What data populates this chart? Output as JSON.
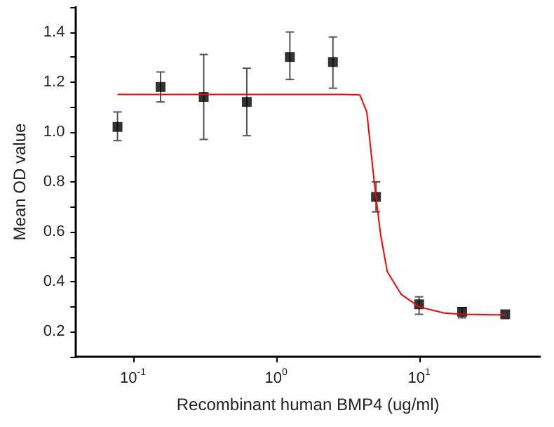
{
  "chart_data": {
    "type": "scatter",
    "xlabel": "Recombinant human BMP4 (ug/ml)",
    "ylabel": "Mean OD value",
    "log": "x",
    "grid": false,
    "xlim": [
      0.04,
      70
    ],
    "xticks": [
      {
        "value": 0.1,
        "label": "10$^{-1}$"
      },
      {
        "value": 1,
        "label": "10$^{0}$"
      },
      {
        "value": 10,
        "label": "10$^{1}$"
      }
    ],
    "ylim": [
      0.1,
      1.5
    ],
    "yticks": [
      {
        "value": 0.1,
        "label": null
      },
      0.2,
      {
        "value": 0.3,
        "label": null
      },
      0.4,
      {
        "value": 0.5,
        "label": null
      },
      0.6,
      {
        "value": 0.7,
        "label": null
      },
      0.8,
      {
        "value": 0.9,
        "label": null
      },
      {
        "value": 1.0,
        "label": "1.0"
      },
      {
        "value": 1.1,
        "label": null
      },
      1.2,
      {
        "value": 1.3,
        "label": null
      },
      1.4,
      {
        "value": 1.5,
        "label": null
      }
    ],
    "series": [
      {
        "color": "#000000",
        "marker": "square",
        "x": [
          0.078,
          0.156,
          0.3125,
          0.625,
          1.25,
          2.5,
          5,
          10,
          20,
          40
        ],
        "values": [
          1.02,
          1.18,
          1.14,
          1.12,
          1.3,
          1.28,
          0.74,
          0.31,
          0.28,
          0.27
        ],
        "errors": [
          [
            0.965,
            1.08
          ],
          [
            1.12,
            1.24
          ],
          [
            0.97,
            1.31
          ],
          [
            0.985,
            1.255
          ],
          [
            1.21,
            1.4
          ],
          [
            1.175,
            1.38
          ],
          [
            0.68,
            0.8
          ],
          [
            0.27,
            0.34
          ],
          [
            0.256,
            0.297
          ],
          null
        ]
      },
      {
        "type": "line",
        "color": "#ff0000",
        "marker": "none",
        "line_style": "solid",
        "x": [
          0.078,
          1,
          3,
          3.86,
          4.31,
          4.82,
          5.0,
          5.38,
          6.0,
          7.5,
          10,
          15,
          20,
          40
        ],
        "values": [
          1.15,
          1.15,
          1.15,
          1.148,
          1.08,
          0.82,
          0.74,
          0.59,
          0.44,
          0.35,
          0.3,
          0.275,
          0.27,
          0.267
        ]
      }
    ]
  }
}
